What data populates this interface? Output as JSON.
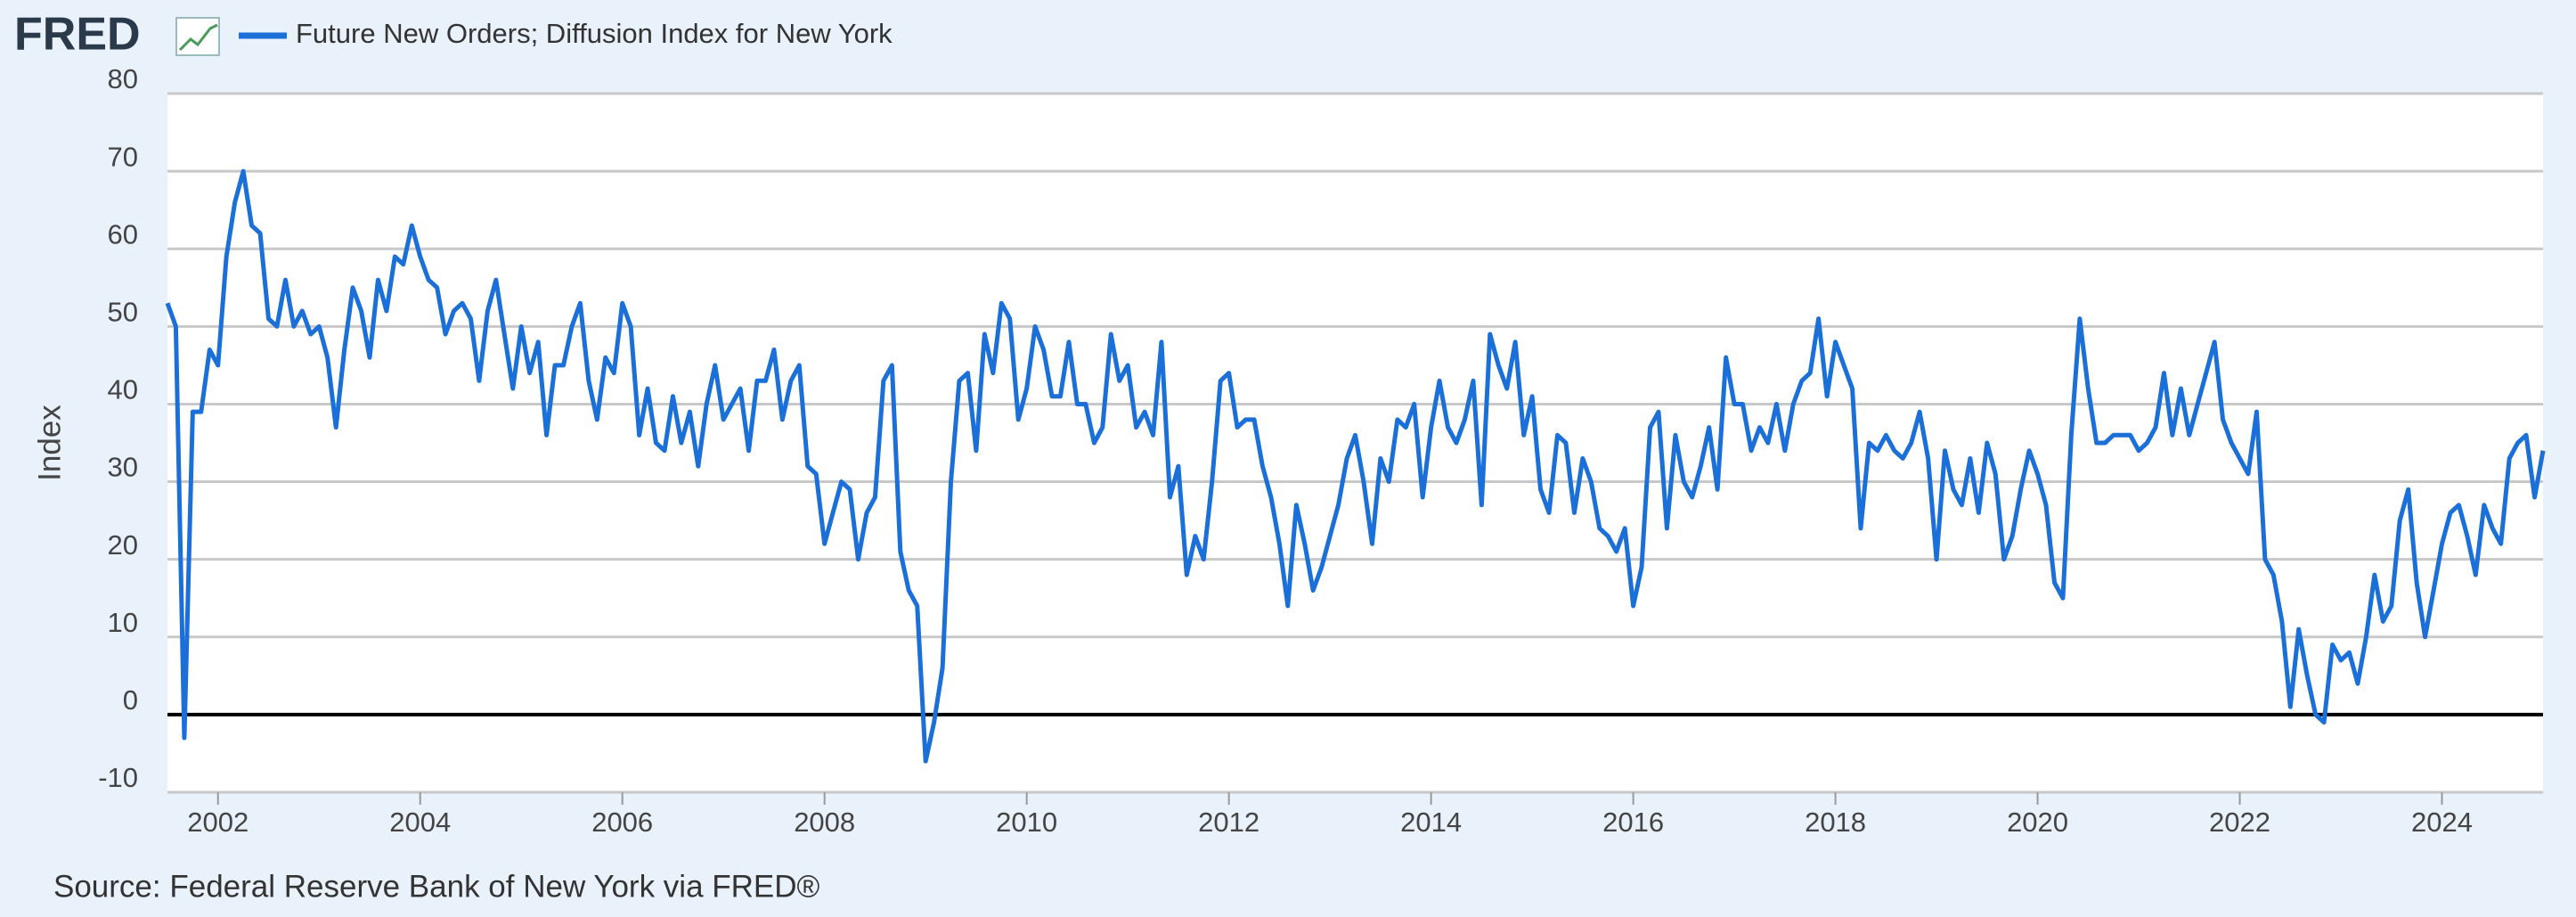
{
  "logo": "FRED",
  "chart_data": {
    "type": "line",
    "y_label": "Index",
    "source": "Source: Federal Reserve Bank of New York via FRED®",
    "xlim": [
      2001.5,
      2025
    ],
    "xticks": [
      2002,
      2004,
      2006,
      2008,
      2010,
      2012,
      2014,
      2016,
      2018,
      2020,
      2022,
      2024
    ],
    "ylim": [
      -10,
      80
    ],
    "yticks": [
      -10,
      0,
      10,
      20,
      30,
      40,
      50,
      60,
      70,
      80
    ],
    "grid": true,
    "x": [
      2001.5,
      2001.583,
      2001.667,
      2001.75,
      2001.833,
      2001.917,
      2002.0,
      2002.083,
      2002.167,
      2002.25,
      2002.333,
      2002.417,
      2002.5,
      2002.583,
      2002.667,
      2002.75,
      2002.833,
      2002.917,
      2003.0,
      2003.083,
      2003.167,
      2003.25,
      2003.333,
      2003.417,
      2003.5,
      2003.583,
      2003.667,
      2003.75,
      2003.833,
      2003.917,
      2004.0,
      2004.083,
      2004.167,
      2004.25,
      2004.333,
      2004.417,
      2004.5,
      2004.583,
      2004.667,
      2004.75,
      2004.833,
      2004.917,
      2005.0,
      2005.083,
      2005.167,
      2005.25,
      2005.333,
      2005.417,
      2005.5,
      2005.583,
      2005.667,
      2005.75,
      2005.833,
      2005.917,
      2006.0,
      2006.083,
      2006.167,
      2006.25,
      2006.333,
      2006.417,
      2006.5,
      2006.583,
      2006.667,
      2006.75,
      2006.833,
      2006.917,
      2007.0,
      2007.083,
      2007.167,
      2007.25,
      2007.333,
      2007.417,
      2007.5,
      2007.583,
      2007.667,
      2007.75,
      2007.833,
      2007.917,
      2008.0,
      2008.083,
      2008.167,
      2008.25,
      2008.333,
      2008.417,
      2008.5,
      2008.583,
      2008.667,
      2008.75,
      2008.833,
      2008.917,
      2009.0,
      2009.083,
      2009.167,
      2009.25,
      2009.333,
      2009.417,
      2009.5,
      2009.583,
      2009.667,
      2009.75,
      2009.833,
      2009.917,
      2010.0,
      2010.083,
      2010.167,
      2010.25,
      2010.333,
      2010.417,
      2010.5,
      2010.583,
      2010.667,
      2010.75,
      2010.833,
      2010.917,
      2011.0,
      2011.083,
      2011.167,
      2011.25,
      2011.333,
      2011.417,
      2011.5,
      2011.583,
      2011.667,
      2011.75,
      2011.833,
      2011.917,
      2012.0,
      2012.083,
      2012.167,
      2012.25,
      2012.333,
      2012.417,
      2012.5,
      2012.583,
      2012.667,
      2012.75,
      2012.833,
      2012.917,
      2013.0,
      2013.083,
      2013.167,
      2013.25,
      2013.333,
      2013.417,
      2013.5,
      2013.583,
      2013.667,
      2013.75,
      2013.833,
      2013.917,
      2014.0,
      2014.083,
      2014.167,
      2014.25,
      2014.333,
      2014.417,
      2014.5,
      2014.583,
      2014.667,
      2014.75,
      2014.833,
      2014.917,
      2015.0,
      2015.083,
      2015.167,
      2015.25,
      2015.333,
      2015.417,
      2015.5,
      2015.583,
      2015.667,
      2015.75,
      2015.833,
      2015.917,
      2016.0,
      2016.083,
      2016.167,
      2016.25,
      2016.333,
      2016.417,
      2016.5,
      2016.583,
      2016.667,
      2016.75,
      2016.833,
      2016.917,
      2017.0,
      2017.083,
      2017.167,
      2017.25,
      2017.333,
      2017.417,
      2017.5,
      2017.583,
      2017.667,
      2017.75,
      2017.833,
      2017.917,
      2018.0,
      2018.083,
      2018.167,
      2018.25,
      2018.333,
      2018.417,
      2018.5,
      2018.583,
      2018.667,
      2018.75,
      2018.833,
      2018.917,
      2019.0,
      2019.083,
      2019.167,
      2019.25,
      2019.333,
      2019.417,
      2019.5,
      2019.583,
      2019.667,
      2019.75,
      2019.833,
      2019.917,
      2020.0,
      2020.083,
      2020.167,
      2020.25,
      2020.333,
      2020.417,
      2020.5,
      2020.583,
      2020.667,
      2020.75,
      2020.833,
      2020.917,
      2021.0,
      2021.083,
      2021.167,
      2021.25,
      2021.333,
      2021.417,
      2021.5,
      2021.583,
      2021.667,
      2021.75,
      2021.833,
      2021.917,
      2022.0,
      2022.083,
      2022.167,
      2022.25,
      2022.333,
      2022.417,
      2022.5,
      2022.583,
      2022.667,
      2022.75,
      2022.833,
      2022.917,
      2023.0,
      2023.083,
      2023.167,
      2023.25,
      2023.333,
      2023.417,
      2023.5,
      2023.583,
      2023.667,
      2023.75,
      2023.833,
      2023.917,
      2024.0,
      2024.083,
      2024.167,
      2024.25,
      2024.333,
      2024.417,
      2024.5,
      2024.583,
      2024.667,
      2024.75,
      2024.833,
      2024.917,
      2025.0
    ],
    "series": [
      {
        "name": "Future New Orders; Diffusion Index for New York",
        "color": "#1a6fd8",
        "values": [
          53,
          50,
          -3,
          39,
          39,
          47,
          45,
          59,
          66,
          70,
          63,
          62,
          51,
          50,
          56,
          50,
          52,
          49,
          50,
          46,
          37,
          47,
          55,
          52,
          46,
          56,
          52,
          59,
          58,
          63,
          59,
          56,
          55,
          49,
          52,
          53,
          51,
          43,
          52,
          56,
          49,
          42,
          50,
          44,
          48,
          36,
          45,
          45,
          50,
          53,
          43,
          38,
          46,
          44,
          53,
          50,
          36,
          42,
          35,
          34,
          41,
          35,
          39,
          32,
          40,
          45,
          38,
          40,
          42,
          34,
          43,
          43,
          47,
          38,
          43,
          45,
          32,
          31,
          22,
          26,
          30,
          29,
          20,
          26,
          28,
          43,
          45,
          21,
          16,
          14,
          -6,
          -1,
          6,
          30,
          43,
          44,
          34,
          49,
          44,
          53,
          51,
          38,
          42,
          50,
          47,
          41,
          41,
          48,
          40,
          40,
          35,
          37,
          49,
          43,
          45,
          37,
          39,
          36,
          48,
          28,
          32,
          18,
          23,
          20,
          30,
          43,
          44,
          37,
          38,
          38,
          32,
          28,
          22,
          14,
          27,
          22,
          16,
          19,
          23,
          27,
          33,
          36,
          30,
          22,
          33,
          30,
          38,
          37,
          40,
          28,
          37,
          43,
          37,
          35,
          38,
          43,
          27,
          49,
          45,
          42,
          48,
          36,
          41,
          29,
          26,
          36,
          35,
          26,
          33,
          30,
          24,
          23,
          21,
          24,
          14,
          19,
          37,
          39,
          24,
          36,
          30,
          28,
          32,
          37,
          29,
          46,
          40,
          40,
          34,
          37,
          35,
          40,
          34,
          40,
          43,
          44,
          51,
          41,
          48,
          45,
          42,
          24,
          35,
          34,
          36,
          34,
          33,
          35,
          39,
          33,
          20,
          34,
          29,
          27,
          33,
          26,
          35,
          31,
          20,
          23,
          29,
          34,
          31,
          27,
          17,
          15,
          36,
          51,
          42,
          35,
          35,
          36,
          36,
          36,
          34,
          35,
          37,
          44,
          36,
          42,
          36,
          40,
          44,
          48,
          38,
          35,
          33,
          31,
          39,
          20,
          18,
          12,
          1,
          11,
          5,
          0,
          -1,
          9,
          7,
          8,
          4,
          10,
          18,
          12,
          14,
          25,
          29,
          17,
          10,
          16,
          22,
          26,
          27,
          23,
          18,
          27,
          24,
          22,
          33,
          35,
          36,
          28,
          34
        ]
      }
    ]
  }
}
